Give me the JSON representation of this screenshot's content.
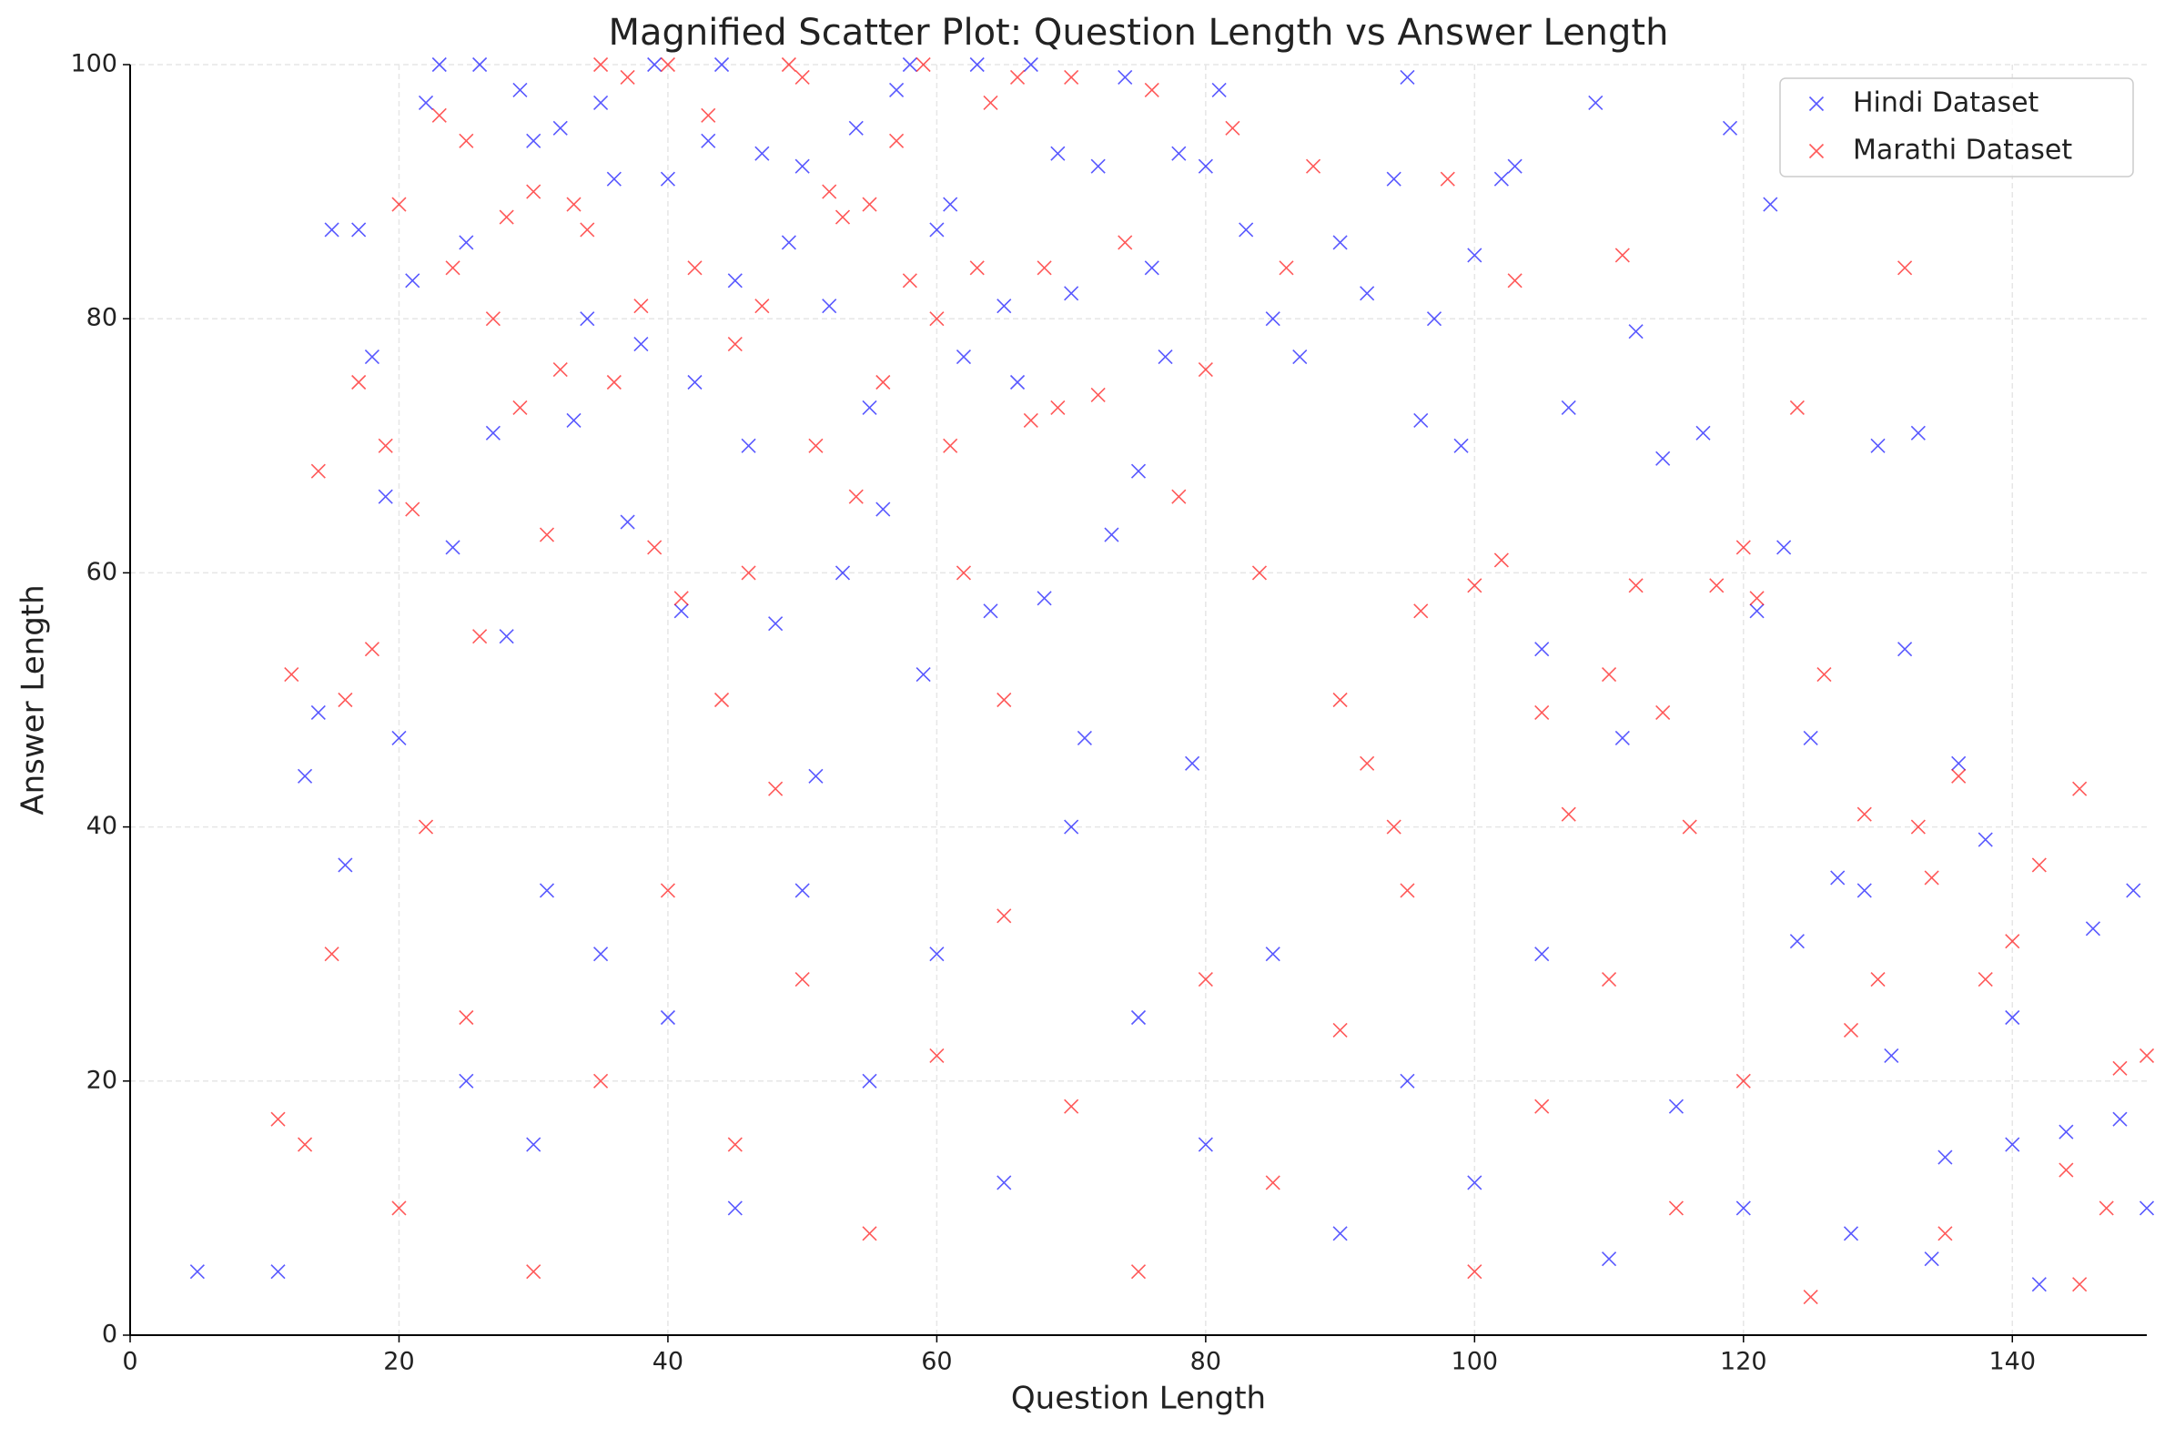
{
  "chart_data": {
    "type": "scatter",
    "title": "Magnified Scatter Plot: Question Length vs Answer Length",
    "x_label": "Question Length",
    "y_label": "Answer Length",
    "xlim": [
      0,
      150
    ],
    "xticks": [
      0,
      20,
      40,
      60,
      80,
      100,
      120,
      140
    ],
    "ylim": [
      0,
      100
    ],
    "yticks": [
      0,
      20,
      40,
      60,
      80,
      100
    ],
    "grid": true,
    "legend": "upper right",
    "marker": "x",
    "alpha": 0.65,
    "series": [
      {
        "name": "Hindi Dataset",
        "color": "#0000ff",
        "x": [
          5,
          11,
          13,
          14,
          15,
          16,
          17,
          18,
          19,
          20,
          21,
          22,
          23,
          24,
          25,
          26,
          27,
          28,
          29,
          30,
          31,
          32,
          33,
          34,
          35,
          36,
          37,
          38,
          39,
          40,
          41,
          42,
          43,
          44,
          45,
          46,
          47,
          48,
          49,
          50,
          51,
          52,
          53,
          54,
          55,
          56,
          57,
          58,
          59,
          60,
          61,
          62,
          63,
          64,
          65,
          66,
          67,
          68,
          69,
          70,
          71,
          72,
          73,
          74,
          75,
          76,
          77,
          78,
          79,
          80,
          81,
          83,
          85,
          87,
          90,
          92,
          94,
          95,
          96,
          97,
          99,
          100,
          102,
          103,
          105,
          107,
          109,
          111,
          112,
          114,
          117,
          119,
          121,
          122,
          123,
          125,
          127,
          129,
          130,
          131,
          132,
          133,
          135,
          136,
          138,
          140,
          142,
          144,
          146,
          148,
          149,
          150,
          25,
          30,
          35,
          40,
          45,
          50,
          55,
          60,
          65,
          70,
          75,
          80,
          85,
          90,
          95,
          100,
          105,
          110,
          115,
          120,
          124,
          128,
          134,
          140
        ],
        "values": [
          5,
          5,
          44,
          49,
          87,
          37,
          87,
          77,
          66,
          47,
          83,
          97,
          100,
          62,
          86,
          100,
          71,
          55,
          98,
          94,
          35,
          95,
          72,
          80,
          97,
          91,
          64,
          78,
          100,
          91,
          57,
          75,
          94,
          100,
          83,
          70,
          93,
          56,
          86,
          92,
          44,
          81,
          60,
          95,
          73,
          65,
          98,
          100,
          52,
          87,
          89,
          77,
          100,
          57,
          81,
          75,
          100,
          58,
          93,
          82,
          47,
          92,
          63,
          99,
          68,
          84,
          77,
          93,
          45,
          92,
          98,
          87,
          80,
          77,
          86,
          82,
          91,
          99,
          72,
          80,
          70,
          85,
          91,
          92,
          54,
          73,
          97,
          47,
          79,
          69,
          71,
          95,
          57,
          89,
          62,
          47,
          36,
          35,
          70,
          22,
          54,
          71,
          14,
          45,
          39,
          25,
          4,
          16,
          32,
          17,
          35,
          10,
          20,
          15,
          30,
          25,
          10,
          35,
          20,
          30,
          12,
          40,
          25,
          15,
          30,
          8,
          20,
          12,
          30,
          6,
          18,
          10,
          31,
          8,
          6,
          15
        ]
      },
      {
        "name": "Marathi Dataset",
        "color": "#ff0000",
        "x": [
          11,
          12,
          13,
          14,
          15,
          16,
          17,
          18,
          19,
          20,
          21,
          22,
          23,
          24,
          25,
          26,
          27,
          28,
          29,
          30,
          31,
          32,
          33,
          34,
          35,
          36,
          37,
          38,
          39,
          40,
          41,
          42,
          43,
          44,
          45,
          46,
          47,
          48,
          49,
          50,
          51,
          52,
          53,
          54,
          55,
          56,
          57,
          58,
          59,
          60,
          61,
          62,
          63,
          64,
          65,
          66,
          67,
          68,
          69,
          70,
          72,
          74,
          76,
          78,
          80,
          82,
          84,
          86,
          88,
          90,
          92,
          94,
          96,
          98,
          100,
          102,
          103,
          105,
          107,
          110,
          111,
          112,
          114,
          116,
          118,
          120,
          121,
          124,
          126,
          128,
          129,
          130,
          132,
          133,
          134,
          136,
          138,
          140,
          142,
          144,
          145,
          147,
          148,
          150,
          20,
          25,
          30,
          35,
          40,
          45,
          50,
          55,
          60,
          65,
          70,
          75,
          80,
          85,
          90,
          95,
          100,
          105,
          110,
          115,
          120,
          125,
          135,
          145
        ],
        "values": [
          17,
          52,
          15,
          68,
          30,
          50,
          75,
          54,
          70,
          89,
          65,
          40,
          96,
          84,
          94,
          55,
          80,
          88,
          73,
          90,
          63,
          76,
          89,
          87,
          100,
          75,
          99,
          81,
          62,
          100,
          58,
          84,
          96,
          50,
          78,
          60,
          81,
          43,
          100,
          99,
          70,
          90,
          88,
          66,
          89,
          75,
          94,
          83,
          100,
          80,
          70,
          60,
          84,
          97,
          50,
          99,
          72,
          84,
          73,
          99,
          74,
          86,
          98,
          66,
          76,
          95,
          60,
          84,
          92,
          50,
          45,
          40,
          57,
          91,
          59,
          61,
          83,
          49,
          41,
          52,
          85,
          59,
          49,
          40,
          59,
          62,
          58,
          73,
          52,
          24,
          41,
          28,
          84,
          40,
          36,
          44,
          28,
          31,
          37,
          13,
          43,
          10,
          21,
          22,
          10,
          25,
          5,
          20,
          35,
          15,
          28,
          8,
          22,
          33,
          18,
          5,
          28,
          12,
          24,
          35,
          5,
          18,
          28,
          10,
          20,
          3,
          8,
          4
        ]
      }
    ]
  }
}
